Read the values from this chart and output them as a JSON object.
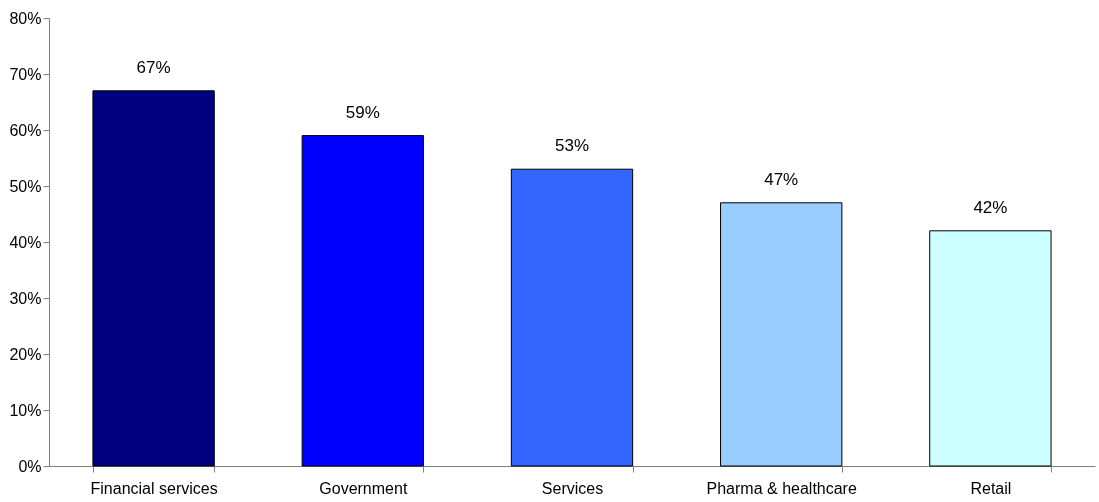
{
  "chart_data": {
    "type": "bar",
    "categories": [
      "Financial services",
      "Government",
      "Services",
      "Pharma & healthcare",
      "Retail"
    ],
    "values": [
      67,
      59,
      53,
      47,
      42
    ],
    "colors": [
      "#000080",
      "#0000ff",
      "#3366ff",
      "#99ccff",
      "#ccffff"
    ],
    "value_labels": [
      "67%",
      "59%",
      "53%",
      "47%",
      "42%"
    ],
    "ylim": [
      0,
      80
    ],
    "yticks": [
      {
        "value": 0,
        "label": "0%"
      },
      {
        "value": 10,
        "label": "10%"
      },
      {
        "value": 20,
        "label": "20%"
      },
      {
        "value": 30,
        "label": "30%"
      },
      {
        "value": 40,
        "label": "40%"
      },
      {
        "value": 50,
        "label": "50%"
      },
      {
        "value": 60,
        "label": "60%"
      },
      {
        "value": 70,
        "label": "70%"
      },
      {
        "value": 80,
        "label": "80%"
      }
    ],
    "grid": false
  }
}
